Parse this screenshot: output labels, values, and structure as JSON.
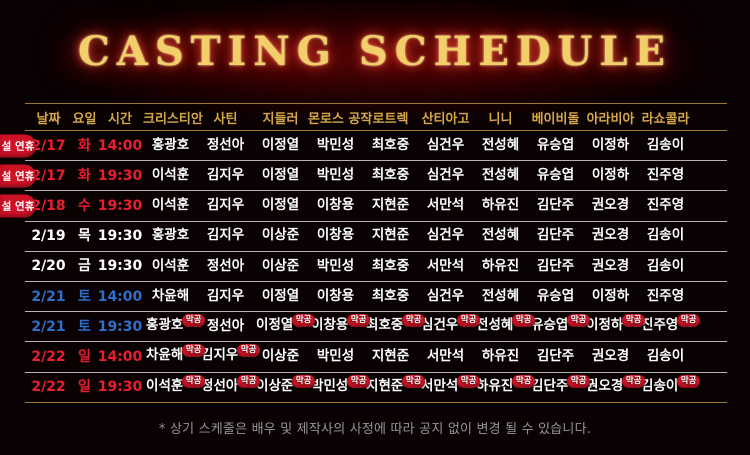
{
  "title": "CASTING SCHEDULE",
  "colors": {
    "background": "#0a0103",
    "title_gold": "#f3cf6a",
    "header_gold": "#d5a847",
    "line_gold": "#9a7830",
    "line_gray": "#b3b3b3",
    "holiday_red": "#ea1e2c",
    "saturday_blue": "#2e6fc9",
    "badge_red": "#d01425"
  },
  "table": {
    "headers": [
      "날짜",
      "요일",
      "시간",
      "크리스티안",
      "사틴",
      "지들러",
      "몬로스 공작",
      "로트렉",
      "산티아고",
      "니니",
      "베이비돌",
      "아라비아",
      "라쇼콜라"
    ],
    "holiday_badge_label": "설 연휴",
    "final_badge_label": "막공",
    "rows": [
      {
        "date": "2/17",
        "day": "화",
        "time": "14:00",
        "tone": "red",
        "holiday": true,
        "cast": [
          {
            "name": "홍광호",
            "final": false
          },
          {
            "name": "정선아",
            "final": false
          },
          {
            "name": "이정열",
            "final": false
          },
          {
            "name": "박민성",
            "final": false
          },
          {
            "name": "최호중",
            "final": false
          },
          {
            "name": "심건우",
            "final": false
          },
          {
            "name": "전성혜",
            "final": false
          },
          {
            "name": "유승엽",
            "final": false
          },
          {
            "name": "이정하",
            "final": false
          },
          {
            "name": "김송이",
            "final": false
          }
        ]
      },
      {
        "date": "2/17",
        "day": "화",
        "time": "19:30",
        "tone": "red",
        "holiday": true,
        "cast": [
          {
            "name": "이석훈",
            "final": false
          },
          {
            "name": "김지우",
            "final": false
          },
          {
            "name": "이정열",
            "final": false
          },
          {
            "name": "박민성",
            "final": false
          },
          {
            "name": "최호중",
            "final": false
          },
          {
            "name": "심건우",
            "final": false
          },
          {
            "name": "전성혜",
            "final": false
          },
          {
            "name": "유승엽",
            "final": false
          },
          {
            "name": "이정하",
            "final": false
          },
          {
            "name": "진주영",
            "final": false
          }
        ]
      },
      {
        "date": "2/18",
        "day": "수",
        "time": "19:30",
        "tone": "red",
        "holiday": true,
        "cast": [
          {
            "name": "이석훈",
            "final": false
          },
          {
            "name": "김지우",
            "final": false
          },
          {
            "name": "이정열",
            "final": false
          },
          {
            "name": "이창용",
            "final": false
          },
          {
            "name": "지현준",
            "final": false
          },
          {
            "name": "서만석",
            "final": false
          },
          {
            "name": "하유진",
            "final": false
          },
          {
            "name": "김단주",
            "final": false
          },
          {
            "name": "권오경",
            "final": false
          },
          {
            "name": "진주영",
            "final": false
          }
        ]
      },
      {
        "date": "2/19",
        "day": "목",
        "time": "19:30",
        "tone": "white",
        "holiday": false,
        "cast": [
          {
            "name": "홍광호",
            "final": false
          },
          {
            "name": "김지우",
            "final": false
          },
          {
            "name": "이상준",
            "final": false
          },
          {
            "name": "이창용",
            "final": false
          },
          {
            "name": "지현준",
            "final": false
          },
          {
            "name": "심건우",
            "final": false
          },
          {
            "name": "전성혜",
            "final": false
          },
          {
            "name": "김단주",
            "final": false
          },
          {
            "name": "권오경",
            "final": false
          },
          {
            "name": "김송이",
            "final": false
          }
        ]
      },
      {
        "date": "2/20",
        "day": "금",
        "time": "19:30",
        "tone": "white",
        "holiday": false,
        "cast": [
          {
            "name": "이석훈",
            "final": false
          },
          {
            "name": "정선아",
            "final": false
          },
          {
            "name": "이상준",
            "final": false
          },
          {
            "name": "박민성",
            "final": false
          },
          {
            "name": "최호중",
            "final": false
          },
          {
            "name": "서만석",
            "final": false
          },
          {
            "name": "하유진",
            "final": false
          },
          {
            "name": "김단주",
            "final": false
          },
          {
            "name": "권오경",
            "final": false
          },
          {
            "name": "김송이",
            "final": false
          }
        ]
      },
      {
        "date": "2/21",
        "day": "토",
        "time": "14:00",
        "tone": "blue",
        "holiday": false,
        "cast": [
          {
            "name": "차윤해",
            "final": false
          },
          {
            "name": "김지우",
            "final": false
          },
          {
            "name": "이정열",
            "final": false
          },
          {
            "name": "이창용",
            "final": false
          },
          {
            "name": "최호중",
            "final": false
          },
          {
            "name": "심건우",
            "final": false
          },
          {
            "name": "전성혜",
            "final": false
          },
          {
            "name": "유승엽",
            "final": false
          },
          {
            "name": "이정하",
            "final": false
          },
          {
            "name": "진주영",
            "final": false
          }
        ]
      },
      {
        "date": "2/21",
        "day": "토",
        "time": "19:30",
        "tone": "blue",
        "holiday": false,
        "cast": [
          {
            "name": "홍광호",
            "final": true
          },
          {
            "name": "정선아",
            "final": false
          },
          {
            "name": "이정열",
            "final": true
          },
          {
            "name": "이창용",
            "final": true
          },
          {
            "name": "최호중",
            "final": true
          },
          {
            "name": "심건우",
            "final": true
          },
          {
            "name": "전성혜",
            "final": true
          },
          {
            "name": "유승엽",
            "final": true
          },
          {
            "name": "이정하",
            "final": true
          },
          {
            "name": "진주영",
            "final": true
          }
        ]
      },
      {
        "date": "2/22",
        "day": "일",
        "time": "14:00",
        "tone": "red",
        "holiday": false,
        "cast": [
          {
            "name": "차윤해",
            "final": true
          },
          {
            "name": "김지우",
            "final": true
          },
          {
            "name": "이상준",
            "final": false
          },
          {
            "name": "박민성",
            "final": false
          },
          {
            "name": "지현준",
            "final": false
          },
          {
            "name": "서만석",
            "final": false
          },
          {
            "name": "하유진",
            "final": false
          },
          {
            "name": "김단주",
            "final": false
          },
          {
            "name": "권오경",
            "final": false
          },
          {
            "name": "김송이",
            "final": false
          }
        ]
      },
      {
        "date": "2/22",
        "day": "일",
        "time": "19:30",
        "tone": "red",
        "holiday": false,
        "cast": [
          {
            "name": "이석훈",
            "final": true
          },
          {
            "name": "정선아",
            "final": true
          },
          {
            "name": "이상준",
            "final": true
          },
          {
            "name": "박민성",
            "final": true
          },
          {
            "name": "지현준",
            "final": true
          },
          {
            "name": "서만석",
            "final": true
          },
          {
            "name": "하유진",
            "final": true
          },
          {
            "name": "김단주",
            "final": true
          },
          {
            "name": "권오경",
            "final": true
          },
          {
            "name": "김송이",
            "final": true
          }
        ]
      }
    ]
  },
  "footer": {
    "note": "* 상기 스케줄은 배우 및 제작사의 사정에 따라 공지 없이 변경 될 수 있습니다."
  }
}
